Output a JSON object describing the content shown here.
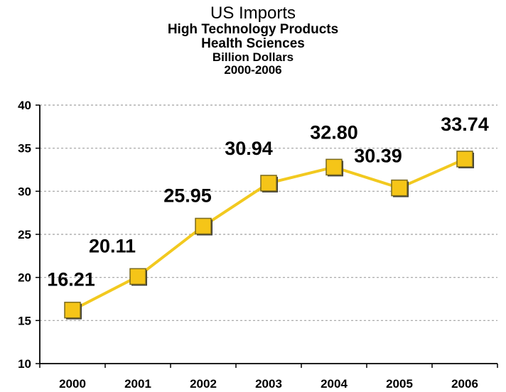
{
  "chart_data": {
    "type": "line",
    "title": "US Imports",
    "subtitles": [
      "High Technology Products",
      "Health Sciences",
      "Billion Dollars",
      "2000-2006"
    ],
    "categories": [
      "2000",
      "2001",
      "2002",
      "2003",
      "2004",
      "2005",
      "2006"
    ],
    "series": [
      {
        "values": [
          16.21,
          20.11,
          25.95,
          30.94,
          32.8,
          30.39,
          33.74
        ]
      }
    ],
    "data_labels": [
      "16.21",
      "20.11",
      "25.95",
      "30.94",
      "32.80",
      "30.39",
      "33.74"
    ],
    "ylim": [
      10,
      40
    ],
    "yticks": [
      "10",
      "15",
      "20",
      "25",
      "30",
      "35",
      "40"
    ],
    "grid": true,
    "legend": "none",
    "colors": {
      "line": "#F2C91F",
      "marker": "#F5C518",
      "marker_edge": "#7a6a1e",
      "grid": "#a0a0a0",
      "axis": "#000000"
    }
  }
}
